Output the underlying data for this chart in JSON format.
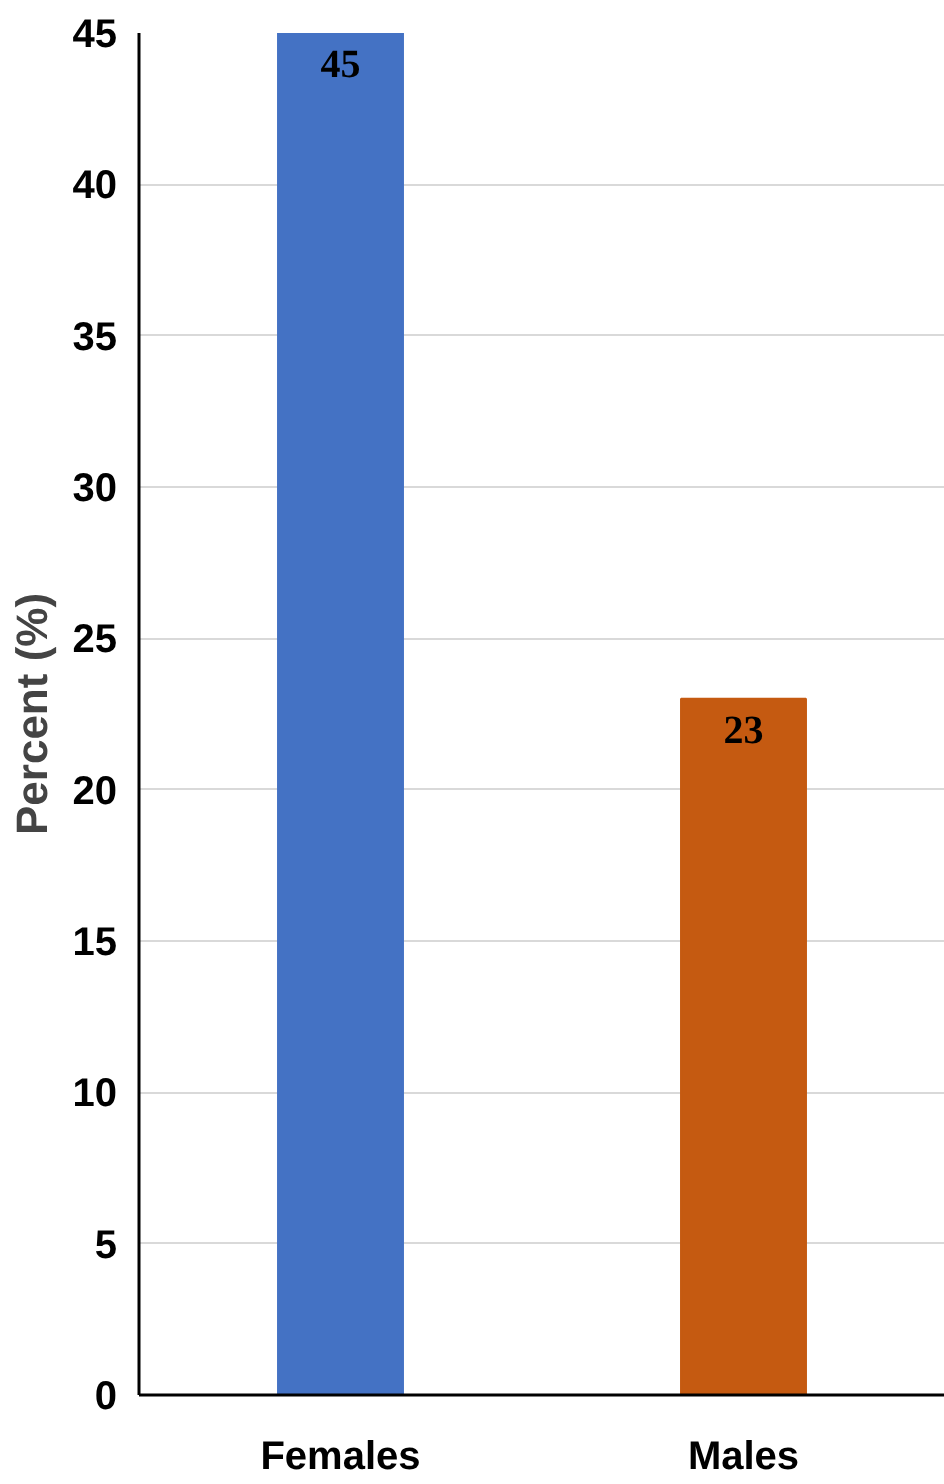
{
  "chart_data": {
    "type": "bar",
    "ylabel": "Percent (%)",
    "categories": [
      "Females",
      "Males"
    ],
    "values": [
      45,
      23
    ],
    "colors": [
      "#4472c4",
      "#c55a11"
    ],
    "ylim": [
      0,
      45
    ],
    "yticks": [
      0,
      5,
      10,
      15,
      20,
      25,
      30,
      35,
      40,
      45
    ],
    "grid": "y",
    "data_labels": true
  }
}
